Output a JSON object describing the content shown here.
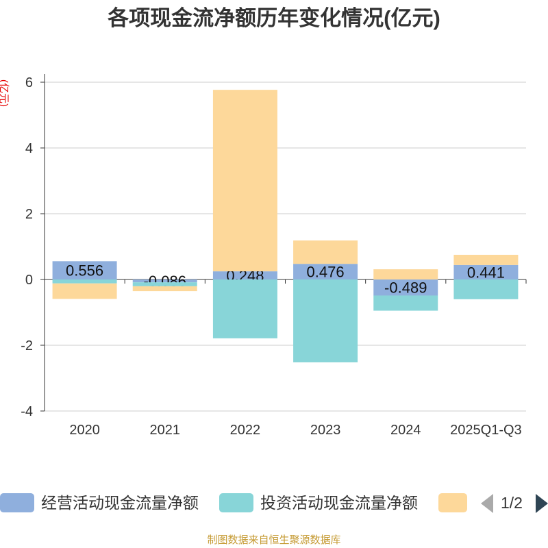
{
  "chart_data": {
    "type": "bar",
    "stacked": true,
    "title": "各项现金流净额历年变化情况(亿元)",
    "ylabel": "(亿元)",
    "xlabel": "",
    "categories": [
      "2020",
      "2021",
      "2022",
      "2023",
      "2024",
      "2025Q1-Q3"
    ],
    "ylim": [
      -4,
      6
    ],
    "yticks": [
      -4,
      -2,
      0,
      2,
      4,
      6
    ],
    "grid": true,
    "legend": "bottom",
    "series": [
      {
        "name": "经营活动现金流量净额",
        "color": "#8fafdd",
        "show_labels": true,
        "values": [
          0.556,
          -0.086,
          0.248,
          0.476,
          -0.489,
          0.441
        ]
      },
      {
        "name": "投资活动现金流量净额",
        "color": "#88d5d8",
        "show_labels": false,
        "values": [
          -0.12,
          -0.12,
          -1.79,
          -2.52,
          -0.46,
          -0.6
        ]
      },
      {
        "name": "",
        "color": "#fdd89a",
        "show_labels": false,
        "values": [
          -0.47,
          -0.15,
          5.52,
          0.71,
          0.31,
          0.31
        ]
      }
    ]
  },
  "legend": {
    "page": "1/2",
    "prev_icon": "arrow-left-icon",
    "next_icon": "arrow-right-icon"
  },
  "footer": "制图数据来自恒生聚源数据库"
}
